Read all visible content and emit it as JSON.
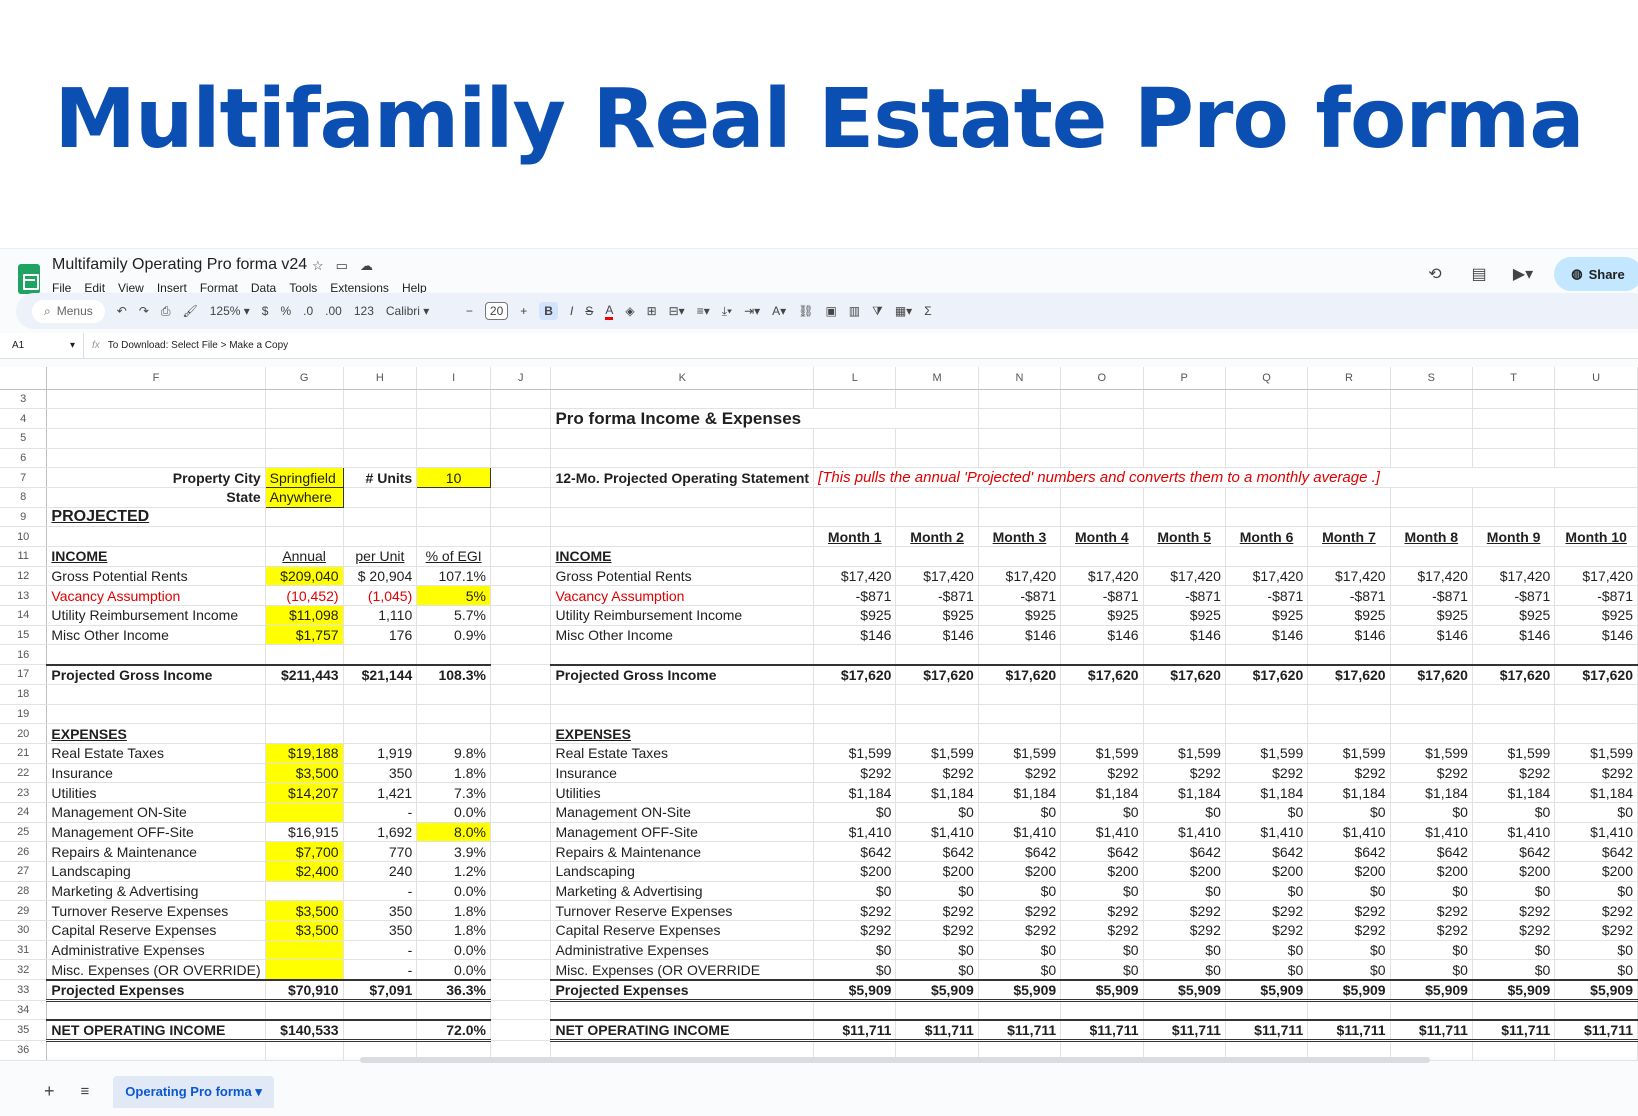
{
  "hero_title": "Multifamily Real Estate Pro forma",
  "doc": {
    "title": "Multifamily Operating Pro forma v24",
    "menu": [
      "File",
      "Edit",
      "View",
      "Insert",
      "Format",
      "Data",
      "Tools",
      "Extensions",
      "Help"
    ],
    "share_label": "Share"
  },
  "toolbar": {
    "search_label": "Menus",
    "zoom": "125%",
    "currency": "$",
    "percent": "%",
    "dec_less": ".0",
    "dec_more": ".00",
    "num_fmt": "123",
    "font": "Calibri",
    "font_size": "20",
    "bold": "B",
    "italic": "I",
    "strike": "S",
    "text_color": "A"
  },
  "formula": {
    "cell": "A1",
    "fx": "fx",
    "content": "To Download: Select File > Make a Copy"
  },
  "columns": [
    "F",
    "G",
    "H",
    "I",
    "J",
    "K",
    "L",
    "M",
    "N",
    "O",
    "P",
    "Q",
    "R",
    "S",
    "T",
    "U"
  ],
  "left": {
    "property_city_label": "Property City",
    "property_city": "Springfield",
    "units_label": "# Units",
    "units": "10",
    "state_label": "State",
    "state": "Anywhere",
    "projected": "PROJECTED",
    "income_hdr": "INCOME",
    "annual_hdr": "Annual",
    "perunit_hdr": "per Unit",
    "egi_hdr": "% of EGI",
    "income": [
      {
        "label": "Gross Potential Rents",
        "annual": "$209,040",
        "per": "$  20,904",
        "pct": "107.1%"
      },
      {
        "label": "Vacancy Assumption",
        "annual": "(10,452)",
        "per": "(1,045)",
        "pct": "5%"
      },
      {
        "label": "Utility Reimbursement Income",
        "annual": "$11,098",
        "per": "1,110",
        "pct": "5.7%"
      },
      {
        "label": "Misc Other Income",
        "annual": "$1,757",
        "per": "176",
        "pct": "0.9%"
      }
    ],
    "pgi": {
      "label": "Projected Gross Income",
      "annual": "$211,443",
      "per": "$21,144",
      "pct": "108.3%"
    },
    "expenses_hdr": "EXPENSES",
    "expenses": [
      {
        "label": "Real Estate Taxes",
        "annual": "$19,188",
        "per": "1,919",
        "pct": "9.8%"
      },
      {
        "label": "Insurance",
        "annual": "$3,500",
        "per": "350",
        "pct": "1.8%"
      },
      {
        "label": "Utilities",
        "annual": "$14,207",
        "per": "1,421",
        "pct": "7.3%"
      },
      {
        "label": "Management ON-Site",
        "annual": "",
        "per": "-",
        "pct": "0.0%"
      },
      {
        "label": "Management OFF-Site",
        "annual": "$16,915",
        "per": "1,692",
        "pct": "8.0%"
      },
      {
        "label": "Repairs & Maintenance",
        "annual": "$7,700",
        "per": "770",
        "pct": "3.9%"
      },
      {
        "label": "Landscaping",
        "annual": "$2,400",
        "per": "240",
        "pct": "1.2%"
      },
      {
        "label": "Marketing & Advertising",
        "annual": "",
        "per": "-",
        "pct": "0.0%"
      },
      {
        "label": "Turnover Reserve Expenses",
        "annual": "$3,500",
        "per": "350",
        "pct": "1.8%"
      },
      {
        "label": "Capital Reserve Expenses",
        "annual": "$3,500",
        "per": "350",
        "pct": "1.8%"
      },
      {
        "label": "Administrative Expenses",
        "annual": "",
        "per": "-",
        "pct": "0.0%"
      },
      {
        "label": "Misc. Expenses (OR OVERRIDE)",
        "annual": "",
        "per": "-",
        "pct": "0.0%"
      }
    ],
    "pe": {
      "label": "Projected Expenses",
      "annual": "$70,910",
      "per": "$7,091",
      "pct": "36.3%"
    },
    "noi": {
      "label": "NET OPERATING INCOME",
      "annual": "$140,533",
      "per": "",
      "pct": "72.0%"
    }
  },
  "right": {
    "title": "Pro forma Income & Expenses",
    "statement": "12-Mo. Projected Operating Statement",
    "note": "[This pulls the annual 'Projected' numbers and converts them to a monthly average .]",
    "months": [
      "Month 1",
      "Month 2",
      "Month 3",
      "Month 4",
      "Month 5",
      "Month 6",
      "Month 7",
      "Month 8",
      "Month 9",
      "Month 10"
    ],
    "income_hdr": "INCOME",
    "income": [
      {
        "label": "Gross Potential Rents",
        "val": "$17,420"
      },
      {
        "label": "Vacancy Assumption",
        "val": "-$871"
      },
      {
        "label": "Utility Reimbursement Income",
        "val": "$925"
      },
      {
        "label": "Misc Other Income",
        "val": "$146"
      }
    ],
    "pgi": {
      "label": "Projected Gross Income",
      "val": "$17,620"
    },
    "expenses_hdr": "EXPENSES",
    "expenses": [
      {
        "label": "Real Estate Taxes",
        "val": "$1,599"
      },
      {
        "label": "Insurance",
        "val": "$292"
      },
      {
        "label": "Utilities",
        "val": "$1,184"
      },
      {
        "label": "Management ON-Site",
        "val": "$0"
      },
      {
        "label": "Management OFF-Site",
        "val": "$1,410"
      },
      {
        "label": "Repairs & Maintenance",
        "val": "$642"
      },
      {
        "label": "Landscaping",
        "val": "$200"
      },
      {
        "label": "Marketing & Advertising",
        "val": "$0"
      },
      {
        "label": "Turnover Reserve Expenses",
        "val": "$292"
      },
      {
        "label": "Capital Reserve Expenses",
        "val": "$292"
      },
      {
        "label": "Administrative Expenses",
        "val": "$0"
      },
      {
        "label": "Misc. Expenses (OR OVERRIDE",
        "val": "$0"
      }
    ],
    "pe": {
      "label": "Projected Expenses",
      "val": "$5,909"
    },
    "noi": {
      "label": "NET OPERATING INCOME",
      "val": "$11,711"
    }
  },
  "sheet_tab": "Operating Pro forma"
}
